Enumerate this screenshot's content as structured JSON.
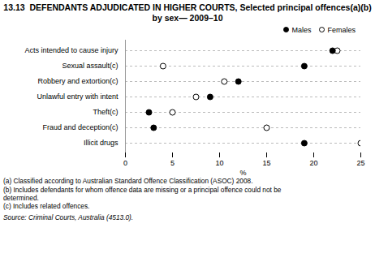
{
  "chart_data": {
    "type": "dot",
    "title": "13.13  DEFENDANTS ADJUDICATED IN HIGHER COURTS, Selected principal offences(a)(b) by sex— 2009–10",
    "categories": [
      "Acts intended to cause injury",
      "Sexual assault(c)",
      "Robbery and extortion(c)",
      "Unlawful entry with intent",
      "Theft(c)",
      "Fraud and deception(c)",
      "Illicit drugs"
    ],
    "series": [
      {
        "name": "Males",
        "color": "black",
        "values": [
          22.0,
          19.0,
          12.0,
          9.0,
          2.5,
          3.0,
          19.0
        ]
      },
      {
        "name": "Females",
        "color": "white",
        "values": [
          22.5,
          4.0,
          10.5,
          7.5,
          5.0,
          15.0,
          25.0
        ]
      }
    ],
    "x_label": "%",
    "xlim": [
      0,
      25
    ],
    "xticks": [
      0,
      5,
      10,
      15,
      20,
      25
    ],
    "grid": true,
    "legend": "upper right",
    "marker": "circle",
    "footnotes": [
      "(a) Classified according to Australian Standard Offence Classification (ASOC) 2008.",
      "(b) Includes defendants for whom offence data are missing or a principal offence could not be",
      "determined.",
      "(c) Includes related offences."
    ],
    "source": "Source: Criminal Courts, Australia (4513.0)."
  }
}
